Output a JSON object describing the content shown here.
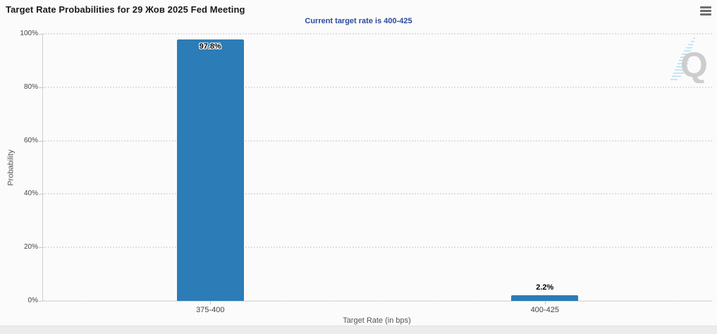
{
  "header": {
    "title": "Target Rate Probabilities for 29 Жов 2025 Fed Meeting",
    "subtitle": "Current target rate is 400-425",
    "menu_icon": "hamburger-menu-icon"
  },
  "chart_data": {
    "type": "bar",
    "title": "Target Rate Probabilities for 29 Жов 2025 Fed Meeting",
    "subtitle": "Current target rate is 400-425",
    "categories": [
      "375-400",
      "400-425"
    ],
    "values": [
      97.8,
      2.2
    ],
    "value_labels": [
      "97.8%",
      "2.2%"
    ],
    "xlabel": "Target Rate (in bps)",
    "ylabel": "Probability",
    "ylim": [
      0,
      100
    ],
    "ytick_values": [
      0,
      20,
      40,
      60,
      80,
      100
    ],
    "ytick_labels": [
      "0%",
      "20%",
      "40%",
      "60%",
      "80%",
      "100%"
    ],
    "grid": "horizontal-dotted",
    "legend": "none",
    "bar_color": "#2b7cb7"
  },
  "watermark": {
    "letter": "Q"
  },
  "colors": {
    "bar": "#2b7cb7",
    "subtitle_text": "#2a4a9c",
    "axis_line": "#cfcfcf",
    "grid_dots": "#e0e0e0",
    "watermark_gray": "#c9c9c9",
    "watermark_blue": "#b5ddf2",
    "background": "#fbfbfb"
  }
}
